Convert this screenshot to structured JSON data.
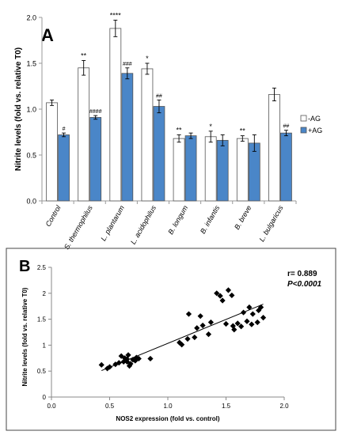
{
  "colors": {
    "minus_ag": "#ffffff",
    "plus_ag": "#4a86c8",
    "bar_stroke": "#555555",
    "axis": "#999999",
    "text": "#000000"
  },
  "chart_data": [
    {
      "type": "bar",
      "panel_label": "A",
      "ylabel": "Nitrite levels (fold vs. relative T0)",
      "ylim": [
        0,
        2.0
      ],
      "yticks": [
        "0.0",
        "0.5",
        "1.0",
        "1.5",
        "2.0"
      ],
      "categories": [
        "Control",
        "S. thermophilus",
        "L. plantarum",
        "L. acidophilus",
        "B. longum",
        "B. infantis",
        "B. breve",
        "L. bulgaricus"
      ],
      "series": [
        {
          "name": "-AG",
          "values": [
            1.07,
            1.45,
            1.88,
            1.44,
            0.68,
            0.7,
            0.68,
            1.16
          ],
          "errors": [
            0.03,
            0.08,
            0.09,
            0.06,
            0.04,
            0.06,
            0.03,
            0.07
          ],
          "sig": [
            "",
            "**",
            "****",
            "*",
            "**",
            "*",
            "**",
            ""
          ]
        },
        {
          "name": "+AG",
          "values": [
            0.72,
            0.91,
            1.39,
            1.03,
            0.71,
            0.66,
            0.63,
            0.74
          ],
          "errors": [
            0.02,
            0.02,
            0.06,
            0.07,
            0.03,
            0.06,
            0.09,
            0.03
          ],
          "sig": [
            "#",
            "####",
            "###",
            "##",
            "",
            "",
            "",
            "##"
          ]
        }
      ],
      "legend_position": "right"
    },
    {
      "type": "scatter",
      "panel_label": "B",
      "xlabel": "NOS2 expression (fold vs. control)",
      "ylabel": "Nitrite levels (fold vs. relative T0)",
      "xlim": [
        0,
        2.0
      ],
      "ylim": [
        0,
        2.5
      ],
      "xticks": [
        "0.0",
        "0.5",
        "1.0",
        "1.5",
        "2.0"
      ],
      "yticks": [
        "0",
        "0.5",
        "1",
        "1.5",
        "2",
        "2.5"
      ],
      "annotation_r": "r= 0.889",
      "annotation_p": "P<0.0001",
      "points": [
        [
          0.43,
          0.62
        ],
        [
          0.48,
          0.55
        ],
        [
          0.5,
          0.58
        ],
        [
          0.55,
          0.63
        ],
        [
          0.58,
          0.66
        ],
        [
          0.6,
          0.79
        ],
        [
          0.62,
          0.68
        ],
        [
          0.63,
          0.75
        ],
        [
          0.65,
          0.68
        ],
        [
          0.65,
          0.73
        ],
        [
          0.66,
          0.81
        ],
        [
          0.67,
          0.6
        ],
        [
          0.68,
          0.64
        ],
        [
          0.7,
          0.72
        ],
        [
          0.72,
          0.7
        ],
        [
          0.73,
          0.76
        ],
        [
          0.75,
          0.74
        ],
        [
          0.85,
          0.74
        ],
        [
          1.1,
          1.05
        ],
        [
          1.12,
          1.01
        ],
        [
          1.17,
          1.12
        ],
        [
          1.18,
          1.6
        ],
        [
          1.23,
          1.15
        ],
        [
          1.25,
          1.33
        ],
        [
          1.28,
          1.56
        ],
        [
          1.3,
          1.38
        ],
        [
          1.35,
          1.21
        ],
        [
          1.37,
          1.44
        ],
        [
          1.42,
          2.0
        ],
        [
          1.45,
          1.95
        ],
        [
          1.47,
          1.86
        ],
        [
          1.5,
          1.41
        ],
        [
          1.52,
          2.06
        ],
        [
          1.55,
          1.96
        ],
        [
          1.56,
          1.37
        ],
        [
          1.57,
          1.3
        ],
        [
          1.6,
          1.42
        ],
        [
          1.63,
          1.36
        ],
        [
          1.65,
          1.63
        ],
        [
          1.68,
          1.46
        ],
        [
          1.7,
          1.73
        ],
        [
          1.72,
          1.4
        ],
        [
          1.73,
          1.6
        ],
        [
          1.77,
          1.44
        ],
        [
          1.8,
          1.73
        ],
        [
          1.82,
          1.53
        ],
        [
          1.78,
          1.67
        ]
      ],
      "trendline": {
        "x": [
          0.43,
          1.82
        ],
        "y": [
          0.51,
          1.79
        ]
      }
    }
  ]
}
